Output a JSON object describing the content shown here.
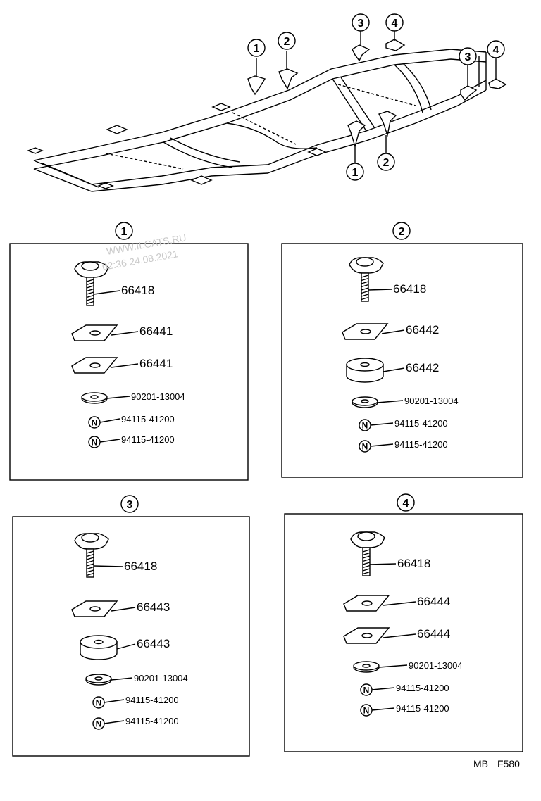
{
  "watermark": {
    "site": "WWW.ILCATS.RU",
    "datetime": "02:36 24.08.2021"
  },
  "overview": {
    "callouts": [
      "1",
      "2",
      "3",
      "4",
      "3",
      "4",
      "1",
      "2"
    ]
  },
  "panels": [
    {
      "id": "1",
      "parts": [
        {
          "icon": "bolt-icon",
          "number": "66418"
        },
        {
          "icon": "plate-icon",
          "number": "66441"
        },
        {
          "icon": "plate-icon",
          "number": "66441"
        },
        {
          "icon": "washer-icon",
          "number": "90201-13004"
        },
        {
          "icon": "nut-icon",
          "number": "94115-41200"
        },
        {
          "icon": "nut-icon",
          "number": "94115-41200"
        }
      ]
    },
    {
      "id": "2",
      "parts": [
        {
          "icon": "bolt-icon",
          "number": "66418"
        },
        {
          "icon": "plate-icon",
          "number": "66442"
        },
        {
          "icon": "cushion-icon",
          "number": "66442"
        },
        {
          "icon": "washer-icon",
          "number": "90201-13004"
        },
        {
          "icon": "nut-icon",
          "number": "94115-41200"
        },
        {
          "icon": "nut-icon",
          "number": "94115-41200"
        }
      ]
    },
    {
      "id": "3",
      "parts": [
        {
          "icon": "bolt-icon",
          "number": "66418"
        },
        {
          "icon": "plate-icon",
          "number": "66443"
        },
        {
          "icon": "cushion-icon",
          "number": "66443"
        },
        {
          "icon": "washer-icon",
          "number": "90201-13004"
        },
        {
          "icon": "nut-icon",
          "number": "94115-41200"
        },
        {
          "icon": "nut-icon",
          "number": "94115-41200"
        }
      ]
    },
    {
      "id": "4",
      "parts": [
        {
          "icon": "bolt-icon",
          "number": "66418"
        },
        {
          "icon": "plate-icon",
          "number": "66444"
        },
        {
          "icon": "plate-icon",
          "number": "66444"
        },
        {
          "icon": "washer-icon",
          "number": "90201-13004"
        },
        {
          "icon": "nut-icon",
          "number": "94115-41200"
        },
        {
          "icon": "nut-icon",
          "number": "94115-41200"
        }
      ]
    }
  ],
  "nut_symbol": "N",
  "footer": {
    "code1": "MB",
    "code2": "F580"
  }
}
